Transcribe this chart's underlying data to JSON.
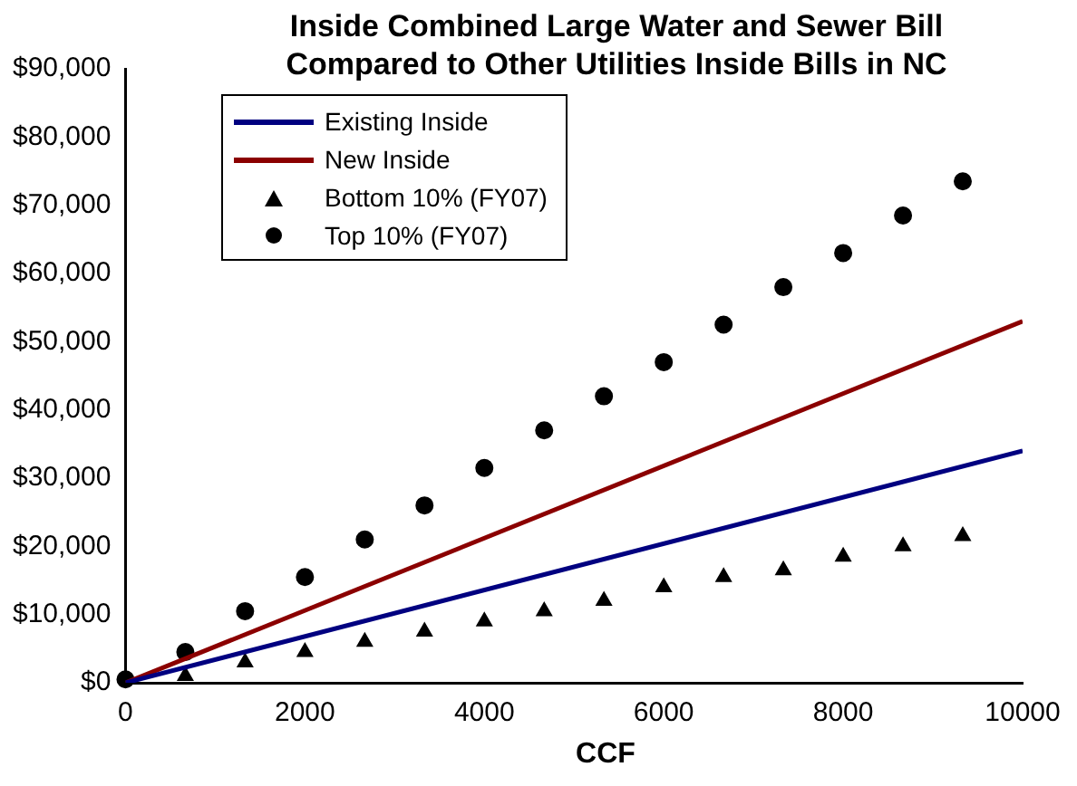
{
  "chart_data": {
    "type": "line",
    "title": "Inside Combined Large Water and Sewer Bill\nCompared to Other Utilities Inside Bills in NC",
    "xlabel": "CCF",
    "xlim": [
      0,
      10000
    ],
    "xticks": [
      0,
      2000,
      4000,
      6000,
      8000,
      10000
    ],
    "ylim": [
      0,
      90000
    ],
    "yticks": [
      {
        "value": 0,
        "label": "$0"
      },
      {
        "value": 10000,
        "label": "$10,000"
      },
      {
        "value": 20000,
        "label": "$20,000"
      },
      {
        "value": 30000,
        "label": "$30,000"
      },
      {
        "value": 40000,
        "label": "$40,000"
      },
      {
        "value": 50000,
        "label": "$50,000"
      },
      {
        "value": 60000,
        "label": "$60,000"
      },
      {
        "value": 70000,
        "label": "$70,000"
      },
      {
        "value": 80000,
        "label": "$80,000"
      },
      {
        "value": 90000,
        "label": "$90,000"
      }
    ],
    "grid": false,
    "legend": "top left",
    "series": [
      {
        "name": "Existing Inside",
        "type": "line",
        "color": "#000080",
        "marker": "none",
        "x": [
          0,
          10000
        ],
        "values": [
          0,
          34000
        ]
      },
      {
        "name": "New Inside",
        "type": "line",
        "color": "#8b0000",
        "marker": "none",
        "x": [
          0,
          10000
        ],
        "values": [
          0,
          53000
        ]
      },
      {
        "name": "Bottom 10% (FY07)",
        "type": "scatter",
        "color": "#000000",
        "marker": "triangle",
        "x": [
          667,
          1333,
          2000,
          2667,
          3333,
          4000,
          4667,
          5333,
          6000,
          6667,
          7333,
          8000,
          8667,
          9333
        ],
        "values": [
          1000,
          3000,
          4500,
          6000,
          7500,
          9000,
          10500,
          12000,
          14000,
          15500,
          16500,
          18500,
          20000,
          21500
        ]
      },
      {
        "name": "Top 10% (FY07)",
        "type": "scatter",
        "color": "#000000",
        "marker": "circle",
        "x": [
          0,
          667,
          1333,
          2000,
          2667,
          3333,
          4000,
          4667,
          5333,
          6000,
          6667,
          7333,
          8000,
          8667,
          9333
        ],
        "values": [
          500,
          4500,
          10500,
          15500,
          21000,
          26000,
          31500,
          37000,
          42000,
          47000,
          52500,
          58000,
          63000,
          68500,
          73500
        ]
      }
    ]
  }
}
